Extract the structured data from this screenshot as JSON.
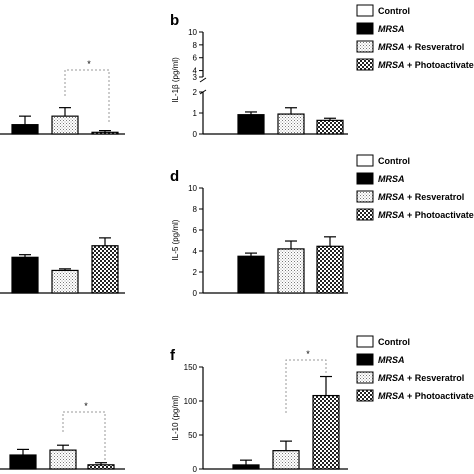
{
  "legend_labels": [
    "Control",
    "MRSA",
    "MRSA + Resveratrol",
    "MRSA + Photoactivated"
  ],
  "chart_data": [
    {
      "panel": "a",
      "type": "bar",
      "grouped_with_panel": "b",
      "title": "",
      "xlabel": "",
      "ylabel": "",
      "categories": [
        "MRSA",
        "MRSA + Resveratrol",
        "MRSA + Photoactivated"
      ],
      "values": [
        0.55,
        1.05,
        0.1
      ],
      "errors": [
        0.5,
        0.5,
        0.1
      ],
      "significance": [
        {
          "from": 1,
          "to": 2,
          "label": "*"
        }
      ],
      "grid": false,
      "legend": "none"
    },
    {
      "panel": "b",
      "type": "bar",
      "title": "b",
      "xlabel": "",
      "ylabel": "IL-1β (pg/ml)",
      "y_ticks": [
        "0",
        "1",
        "2",
        "3",
        "4",
        "6",
        "8",
        "10"
      ],
      "ylim": [
        0,
        10
      ],
      "y_axis_break": [
        2.5,
        3.5
      ],
      "categories": [
        "Control",
        "MRSA",
        "MRSA + Resveratrol",
        "MRSA + Photoactivated"
      ],
      "values": [
        0,
        0.92,
        0.95,
        0.65
      ],
      "errors": [
        0,
        0.13,
        0.3,
        0.1
      ],
      "grid": false,
      "legend": "top-right"
    },
    {
      "panel": "c",
      "type": "bar",
      "grouped_with_panel": "d",
      "title": "",
      "xlabel": "",
      "ylabel": "",
      "categories": [
        "MRSA",
        "MRSA + Resveratrol",
        "MRSA + Photoactivated"
      ],
      "values": [
        3.4,
        2.15,
        4.5
      ],
      "errors": [
        0.25,
        0.15,
        0.75
      ],
      "grid": false,
      "legend": "none"
    },
    {
      "panel": "d",
      "type": "bar",
      "title": "d",
      "xlabel": "",
      "ylabel": "IL-5 (pg/ml)",
      "y_ticks": [
        "0",
        "2",
        "4",
        "6",
        "8",
        "10"
      ],
      "ylim": [
        0,
        10
      ],
      "categories": [
        "Control",
        "MRSA",
        "MRSA + Resveratrol",
        "MRSA + Photoactivated"
      ],
      "values": [
        0,
        3.5,
        4.2,
        4.45
      ],
      "errors": [
        0,
        0.3,
        0.75,
        0.9
      ],
      "grid": false,
      "legend": "top-right"
    },
    {
      "panel": "e",
      "type": "bar",
      "grouped_with_panel": "f",
      "title": "",
      "xlabel": "",
      "ylabel": "",
      "categories": [
        "MRSA",
        "MRSA + Resveratrol",
        "MRSA + Photoactivated"
      ],
      "values": [
        20,
        27,
        6
      ],
      "errors": [
        8,
        7,
        3
      ],
      "significance": [
        {
          "from": 1,
          "to": 2,
          "label": "*"
        }
      ],
      "grid": false,
      "legend": "none"
    },
    {
      "panel": "f",
      "type": "bar",
      "title": "f",
      "xlabel": "",
      "ylabel": "IL-10 (pg/ml)",
      "y_ticks": [
        "0",
        "50",
        "100",
        "150"
      ],
      "ylim": [
        0,
        150
      ],
      "categories": [
        "Control",
        "MRSA",
        "MRSA + Resveratrol",
        "MRSA + Photoactivated"
      ],
      "values": [
        0,
        6,
        27,
        108
      ],
      "errors": [
        0,
        7,
        14,
        28
      ],
      "significance": [
        {
          "from": 2,
          "to": 3,
          "label": "*"
        }
      ],
      "grid": false,
      "legend": "top-right"
    }
  ]
}
